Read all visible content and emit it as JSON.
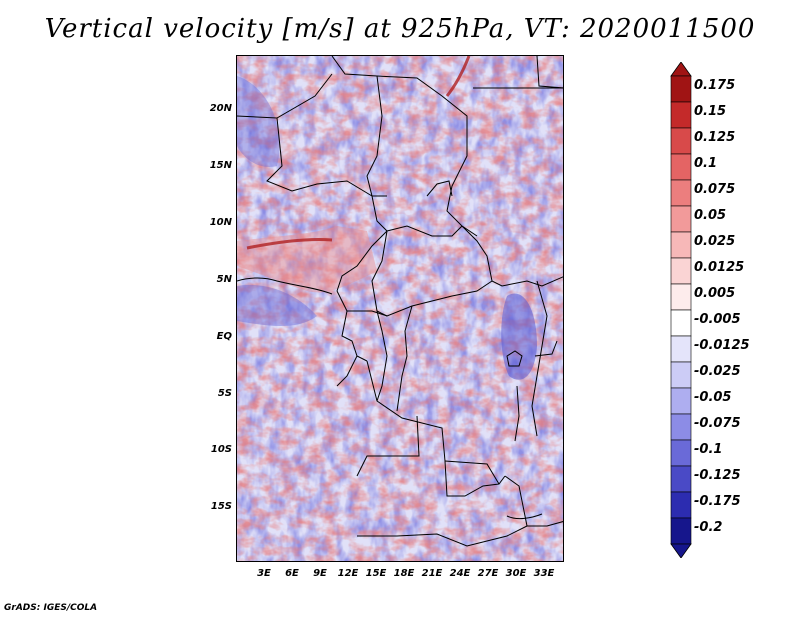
{
  "title": "Vertical velocity [m/s] at 925hPa, VT: 2020011500",
  "footer": "GrADS: IGES/COLA",
  "latitude_labels": [
    "20N",
    "15N",
    "10N",
    "5N",
    "EQ",
    "5S",
    "10S",
    "15S"
  ],
  "longitude_labels": [
    "3E",
    "6E",
    "9E",
    "12E",
    "15E",
    "18E",
    "21E",
    "24E",
    "27E",
    "30E",
    "33E"
  ],
  "colorbar": {
    "labels": [
      "0.175",
      "0.15",
      "0.125",
      "0.1",
      "0.075",
      "0.05",
      "0.025",
      "0.0125",
      "0.005",
      "-0.005",
      "-0.0125",
      "-0.025",
      "-0.05",
      "-0.075",
      "-0.1",
      "-0.125",
      "-0.175",
      "-0.2"
    ],
    "colors": [
      "#a01414",
      "#c42a2a",
      "#d84a4a",
      "#e46464",
      "#ec7e7e",
      "#f29a9a",
      "#f7b8b8",
      "#fad4d4",
      "#fdecec",
      "#ffffff",
      "#e4e4fa",
      "#ccccf6",
      "#aeaef0",
      "#8c8ce6",
      "#6a6ad8",
      "#4a4ac6",
      "#2c2cb0",
      "#16168c"
    ]
  },
  "map": {
    "lat_range": [
      -20,
      25
    ],
    "lon_range": [
      0,
      35
    ],
    "colors": {
      "positive": "#e67070",
      "negative": "#7a7ae0",
      "boundary": "#000000",
      "land_empty": "#ffffff"
    }
  }
}
